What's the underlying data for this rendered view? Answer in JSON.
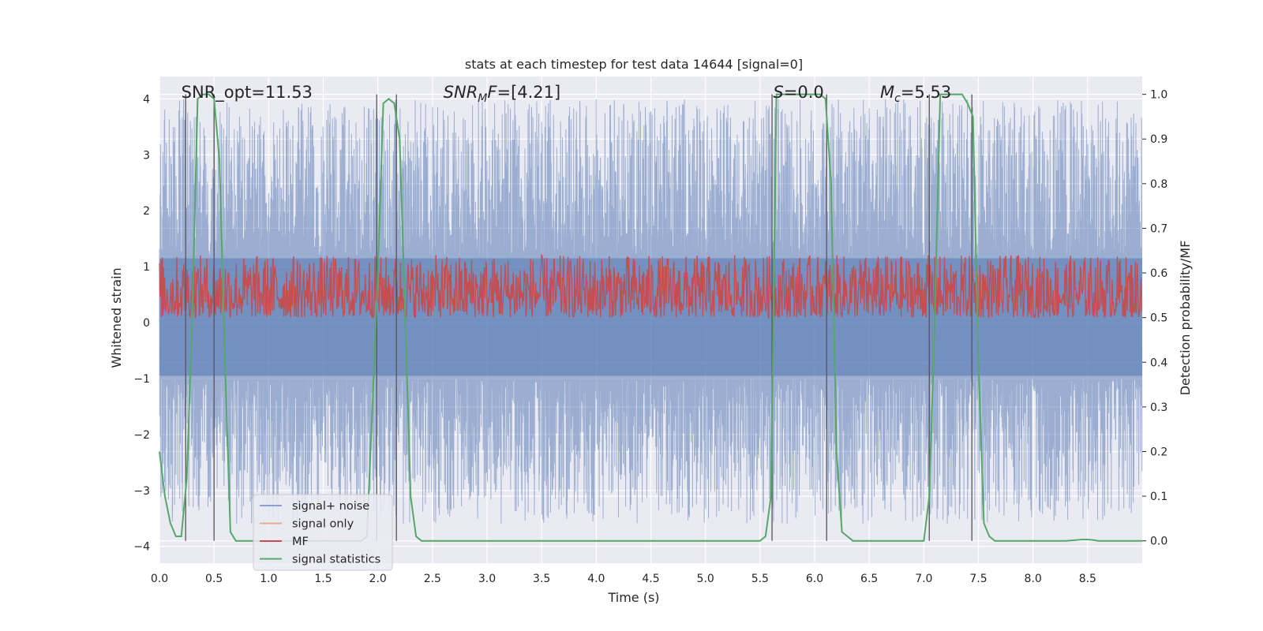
{
  "chart_data": {
    "type": "line",
    "title": "stats at each timestep for test data 14644 [signal=0]",
    "xlabel": "Time (s)",
    "ylabel": "Whitened strain",
    "ylabel_right": "Detection probability/MF",
    "xlim": [
      0.0,
      9.0
    ],
    "ylim": [
      -4.3,
      4.4
    ],
    "ylim_right": [
      -0.05,
      1.04
    ],
    "xticks": [
      "0.0",
      "0.5",
      "1.0",
      "1.5",
      "2.0",
      "2.5",
      "3.0",
      "3.5",
      "4.0",
      "4.5",
      "5.0",
      "5.5",
      "6.0",
      "6.5",
      "7.0",
      "7.5",
      "8.0",
      "8.5"
    ],
    "yticks": [
      "4",
      "3",
      "2",
      "1",
      "0",
      "−1",
      "−2",
      "−3",
      "−4"
    ],
    "yticks_right": [
      "1.0",
      "0.9",
      "0.8",
      "0.7",
      "0.6",
      "0.5",
      "0.4",
      "0.3",
      "0.2",
      "0.1",
      "0.0"
    ],
    "grid": true,
    "legend_position": "lower-left",
    "annotations": [
      {
        "text": "SNR_opt=11.53",
        "x": 0.2
      },
      {
        "text": "SNR",
        "sub": "M",
        "italic": true,
        "suffix": "F=[4.21]",
        "x": 2.6
      },
      {
        "text": "S",
        "italic": true,
        "suffix": "=0.0",
        "x": 5.62
      },
      {
        "text": "M",
        "sub": "c",
        "italic": true,
        "suffix": "=5.53",
        "x": 6.6
      }
    ],
    "series": [
      {
        "name": "signal+ noise",
        "color": "#4c72b0",
        "kind": "noise",
        "range": [
          -2.0,
          4.0
        ]
      },
      {
        "name": "signal only",
        "color": "#dd8452",
        "kind": "signal-only",
        "values": []
      },
      {
        "name": "MF",
        "color": "#c44e52",
        "kind": "mf",
        "range": [
          0.5,
          0.64
        ]
      },
      {
        "name": "signal statistics",
        "color": "#55a868",
        "kind": "statistics",
        "x": [
          0.0,
          0.05,
          0.1,
          0.15,
          0.2,
          0.25,
          0.3,
          0.35,
          0.4,
          0.45,
          0.5,
          0.55,
          0.6,
          0.65,
          0.7,
          0.75,
          1.85,
          1.9,
          1.95,
          2.0,
          2.05,
          2.1,
          2.15,
          2.2,
          2.25,
          2.3,
          2.35,
          2.4,
          5.5,
          5.55,
          5.6,
          5.65,
          5.7,
          5.75,
          6.05,
          6.1,
          6.15,
          6.2,
          6.25,
          6.3,
          6.35,
          7.0,
          7.05,
          7.1,
          7.15,
          7.2,
          7.25,
          7.35,
          7.4,
          7.45,
          7.5,
          7.55,
          7.6,
          7.65,
          7.7,
          8.3,
          8.4,
          8.45,
          8.5,
          8.55,
          8.6,
          9.0
        ],
        "values": [
          0.2,
          0.1,
          0.04,
          0.01,
          0.01,
          0.14,
          0.5,
          0.99,
          1.0,
          1.0,
          0.99,
          0.85,
          0.4,
          0.02,
          0.0,
          0.0,
          0.0,
          0.01,
          0.3,
          0.6,
          0.98,
          0.99,
          0.98,
          0.9,
          0.5,
          0.1,
          0.01,
          0.0,
          0.0,
          0.01,
          0.1,
          1.0,
          1.0,
          1.0,
          1.0,
          0.99,
          0.8,
          0.2,
          0.02,
          0.01,
          0.0,
          0.0,
          0.1,
          0.5,
          1.0,
          1.0,
          1.0,
          1.0,
          0.98,
          0.95,
          0.4,
          0.04,
          0.01,
          0.0,
          0.0,
          0.0,
          0.002,
          0.003,
          0.003,
          0.002,
          0.0,
          0.0
        ]
      }
    ],
    "vlines": [
      0.24,
      0.5,
      1.99,
      2.17,
      5.61,
      6.11,
      7.05,
      7.44
    ]
  }
}
